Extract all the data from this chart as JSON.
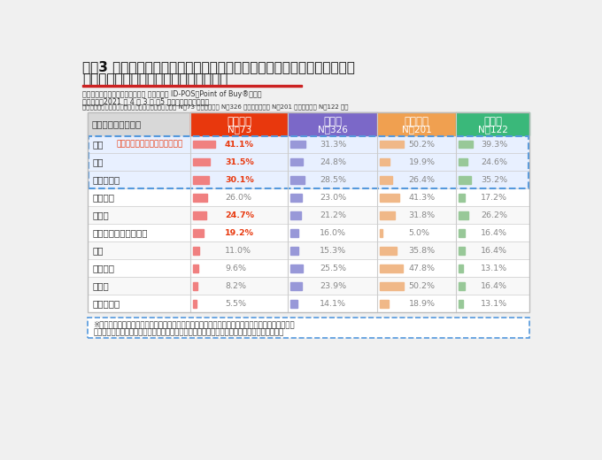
{
  "title_line1": "図表3 競合他社よりも総合的（価格に対する満足度・品質・品揃え等）に",
  "title_line2": "判断して優れていると感じるカテゴリー",
  "subtitle1": "ソフトブレーン・フィールド調べ マルチプル ID-POS「Point of Buy®」より",
  "subtitle2": "調査期間：2021 年 4 月 3 日 〜5 日実施アンケート結果",
  "subtitle3": "各チェーンを日常的に利用すると回答した人「ヤオコー N＝73 人」「イオン N＝326 人」「オーケー N＝201 人」「ライフ N＝122 人」",
  "col_header0": "選択肢（複数回答）",
  "col_header1": "ヤオコー",
  "col_header1b": "N＝73",
  "col_header2": "イオン",
  "col_header2b": "N＝326",
  "col_header3": "オーケー",
  "col_header3b": "N＝201",
  "col_header4": "ライフ",
  "col_header4b": "N＝122",
  "col_colors": [
    "#d8d8d8",
    "#e8380d",
    "#7b68c8",
    "#f0a050",
    "#3ab87a"
  ],
  "categories": [
    "肉類",
    "魚類",
    "野菜・果物",
    "加工食品",
    "総菜類",
    "地場野菜や地元の食材",
    "酒類",
    "冷凍食品",
    "菓子類",
    "デザート類"
  ],
  "data": [
    [
      41.1,
      31.3,
      50.2,
      39.3
    ],
    [
      31.5,
      24.8,
      19.9,
      24.6
    ],
    [
      30.1,
      28.5,
      26.4,
      35.2
    ],
    [
      26.0,
      23.0,
      41.3,
      17.2
    ],
    [
      24.7,
      21.2,
      31.8,
      26.2
    ],
    [
      19.2,
      16.0,
      5.0,
      16.4
    ],
    [
      11.0,
      15.3,
      35.8,
      16.4
    ],
    [
      9.6,
      25.5,
      47.8,
      13.1
    ],
    [
      8.2,
      23.9,
      50.2,
      16.4
    ],
    [
      5.5,
      14.1,
      18.9,
      13.1
    ]
  ],
  "bar_colors": [
    "#f08080",
    "#9898d8",
    "#f0b888",
    "#98c898"
  ],
  "bar_max": 55,
  "highlight_rows": [
    0,
    1,
    2
  ],
  "highlight_bg": "#e8f0ff",
  "highlight_text_color": "#e8380d",
  "normal_text_color": "#888888",
  "red_rows_col0": [
    0,
    1,
    2,
    4,
    5
  ],
  "annotation_text": "生鮮３品に対する満足度が高い",
  "annotation_color": "#e8380d",
  "footnote_line1": "※全国の消費者から実際に購入／利用したレシートを収集し、ブランドカテゴリや利用サービス、",
  "footnote_line2": "実際の飲食店ごとのレシートを通して集計したマルチプルリテール購買データのデータベース",
  "bg_color": "#f0f0f0",
  "table_bg": "#ffffff",
  "header_text_color": "#ffffff",
  "title_color": "#111111",
  "subtitle_color": "#333333",
  "separator_color": "#cccccc",
  "dashed_border_color": "#5599dd"
}
